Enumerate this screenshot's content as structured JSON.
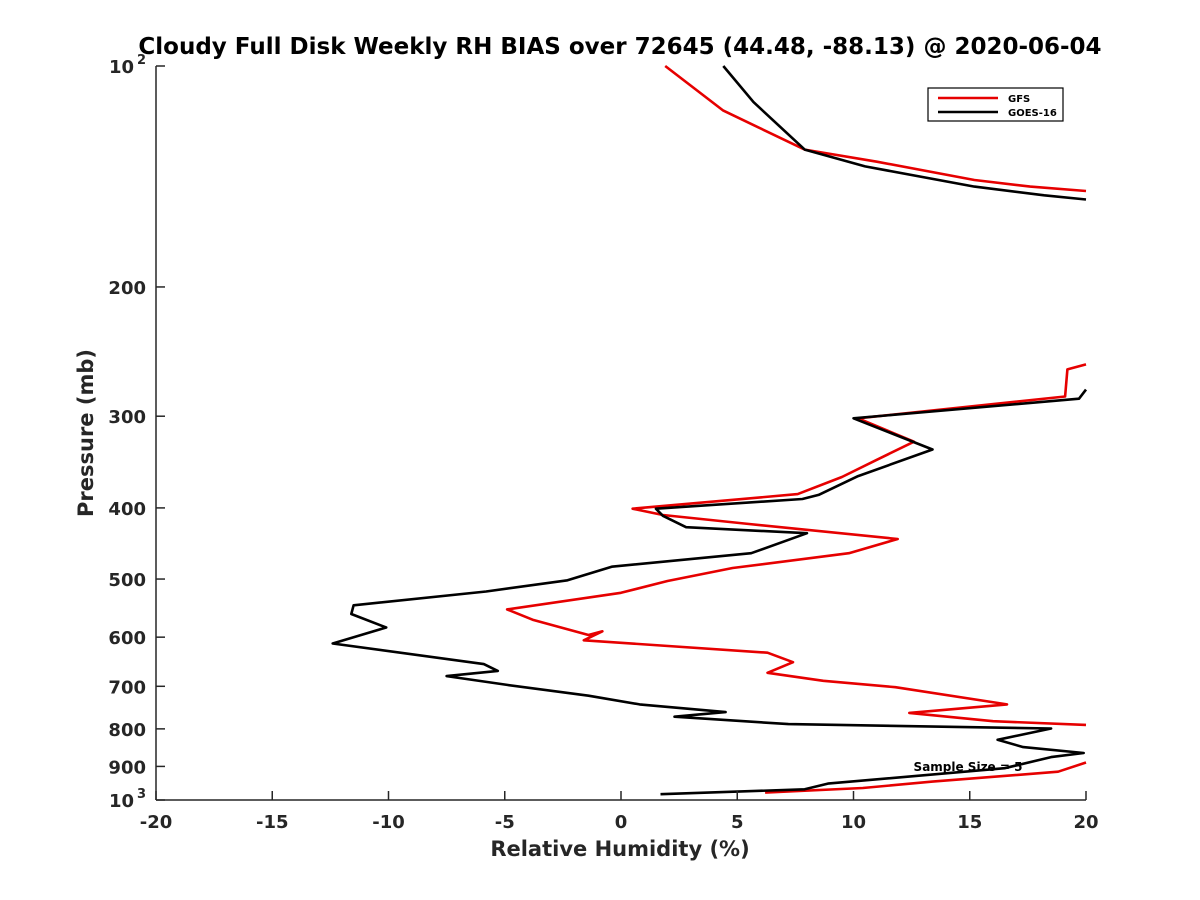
{
  "chart_data": {
    "type": "line",
    "title": "Cloudy Full Disk Weekly RH BIAS over 72645 (44.48, -88.13) @ 2020-06-04",
    "xlabel": "Relative Humidity (%)",
    "ylabel": "Pressure (mb)",
    "xlim": [
      -20,
      20
    ],
    "ylim": [
      100,
      1000
    ],
    "yscale": "log",
    "y_reversed": true,
    "grid": false,
    "legend_position": "top-right",
    "x_ticks": [
      "-20",
      "-15",
      "-10",
      "-5",
      "0",
      "5",
      "10",
      "15",
      "20"
    ],
    "y_ticks": [
      {
        "value": 100,
        "label": "10",
        "exp": "2"
      },
      {
        "value": 200,
        "label": "200"
      },
      {
        "value": 300,
        "label": "300"
      },
      {
        "value": 400,
        "label": "400"
      },
      {
        "value": 500,
        "label": "500"
      },
      {
        "value": 600,
        "label": "600"
      },
      {
        "value": 700,
        "label": "700"
      },
      {
        "value": 800,
        "label": "800"
      },
      {
        "value": 900,
        "label": "900"
      },
      {
        "value": 1000,
        "label": "10",
        "exp": "3"
      }
    ],
    "annotation": "Sample Size = 5",
    "series": [
      {
        "name": "GFS",
        "color": "#e60000",
        "points": [
          [
            1.9,
            100
          ],
          [
            4.4,
            115
          ],
          [
            7.9,
            130
          ],
          [
            11,
            135
          ],
          [
            15.2,
            143
          ],
          [
            17.6,
            146
          ],
          [
            20,
            148
          ],
          [
            null,
            null
          ],
          [
            20,
            255
          ],
          [
            19.2,
            259
          ],
          [
            19.1,
            282
          ],
          [
            10.2,
            302
          ],
          [
            12.6,
            325
          ],
          [
            11,
            344
          ],
          [
            9.5,
            363
          ],
          [
            7.6,
            383
          ],
          [
            0.5,
            401
          ],
          [
            1.8,
            409
          ],
          [
            5.3,
            420
          ],
          [
            11.9,
            441
          ],
          [
            9.8,
            461
          ],
          [
            4.8,
            483
          ],
          [
            2,
            503
          ],
          [
            0,
            522
          ],
          [
            -4.9,
            550
          ],
          [
            -3.8,
            568
          ],
          [
            -1.4,
            596
          ],
          [
            -0.8,
            589
          ],
          [
            -1.6,
            606
          ],
          [
            6.3,
            630
          ],
          [
            7.4,
            649
          ],
          [
            6.3,
            671
          ],
          [
            8.7,
            688
          ],
          [
            11.8,
            702
          ],
          [
            16.6,
            741
          ],
          [
            12.4,
            761
          ],
          [
            16,
            781
          ],
          [
            20,
            790
          ],
          [
            null,
            null
          ],
          [
            20,
            889
          ],
          [
            18.8,
            915
          ],
          [
            13.4,
            944
          ],
          [
            10.4,
            963
          ],
          [
            6.2,
            977
          ]
        ]
      },
      {
        "name": "GOES-16",
        "color": "#000000",
        "points": [
          [
            4.4,
            100
          ],
          [
            5.7,
            112
          ],
          [
            7.9,
            130
          ],
          [
            10.5,
            137
          ],
          [
            15.2,
            146
          ],
          [
            18.2,
            150
          ],
          [
            20,
            152
          ],
          [
            null,
            null
          ],
          [
            20,
            276
          ],
          [
            19.7,
            284
          ],
          [
            10,
            302
          ],
          [
            13.4,
            333
          ],
          [
            10.2,
            362
          ],
          [
            8.5,
            384
          ],
          [
            7.8,
            389
          ],
          [
            1.5,
            401
          ],
          [
            1.8,
            410
          ],
          [
            2.8,
            425
          ],
          [
            8,
            433
          ],
          [
            5.6,
            461
          ],
          [
            -0.4,
            481
          ],
          [
            -2.3,
            502
          ],
          [
            -5.8,
            520
          ],
          [
            -11.5,
            543
          ],
          [
            -11.6,
            558
          ],
          [
            -10.1,
            582
          ],
          [
            -12.4,
            612
          ],
          [
            -5.9,
            653
          ],
          [
            -5.3,
            667
          ],
          [
            -7.5,
            678
          ],
          [
            -4.9,
            697
          ],
          [
            -1.4,
            721
          ],
          [
            0.8,
            741
          ],
          [
            4.5,
            759
          ],
          [
            2.3,
            770
          ],
          [
            7.2,
            788
          ],
          [
            18.5,
            799
          ],
          [
            16.2,
            828
          ],
          [
            17.3,
            847
          ],
          [
            19.9,
            863
          ],
          [
            18.5,
            874
          ],
          [
            16.5,
            905
          ],
          [
            8.9,
            950
          ],
          [
            7.9,
            967
          ],
          [
            1.7,
            982
          ]
        ]
      }
    ]
  }
}
